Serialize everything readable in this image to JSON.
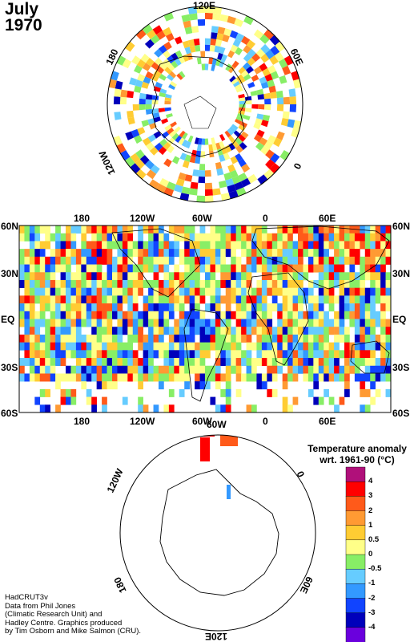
{
  "title": {
    "line1": "July",
    "line2": "1970"
  },
  "north_pole": {
    "labels": {
      "top": "120E",
      "left": "180",
      "right": "60E",
      "lower_left": "120W",
      "lower_right": "0"
    }
  },
  "equirect": {
    "top_ticks": [
      "180",
      "120W",
      "60W",
      "0",
      "60E"
    ],
    "bottom_ticks": [
      "180",
      "120W",
      "60W",
      "0",
      "60E"
    ],
    "lat_labels": [
      "60N",
      "30N",
      "EQ",
      "30S",
      "60S"
    ]
  },
  "south_pole": {
    "labels": {
      "top": "60W",
      "upper_left": "120W",
      "upper_right": "0",
      "lower_left": "180",
      "lower_right": "60E",
      "bottom": "120E"
    }
  },
  "legend": {
    "title_line1": "Temperature anomaly",
    "title_line2": "wrt. 1961-90  (°C)",
    "entries": [
      {
        "label": "4",
        "color": "#b0107a"
      },
      {
        "label": "3",
        "color": "#ff0000"
      },
      {
        "label": "2",
        "color": "#ff5a1a"
      },
      {
        "label": "1",
        "color": "#ff9a33"
      },
      {
        "label": "0.5",
        "color": "#ffcc33"
      },
      {
        "label": "0",
        "color": "#ffff88"
      },
      {
        "label": "-0.5",
        "color": "#88ee66"
      },
      {
        "label": "-1",
        "color": "#66ccff"
      },
      {
        "label": "-2",
        "color": "#3399ff"
      },
      {
        "label": "-3",
        "color": "#1144ff"
      },
      {
        "label": "-4",
        "color": "#0000bb"
      },
      {
        "label": "",
        "color": "#6a00dd"
      }
    ]
  },
  "credits": [
    "HadCRUT3v",
    "Data from Phil Jones",
    "(Climatic Research Unit) and",
    "Hadley Centre.  Graphics produced",
    "by Tim Osborn and Mike Salmon (CRU)."
  ]
}
